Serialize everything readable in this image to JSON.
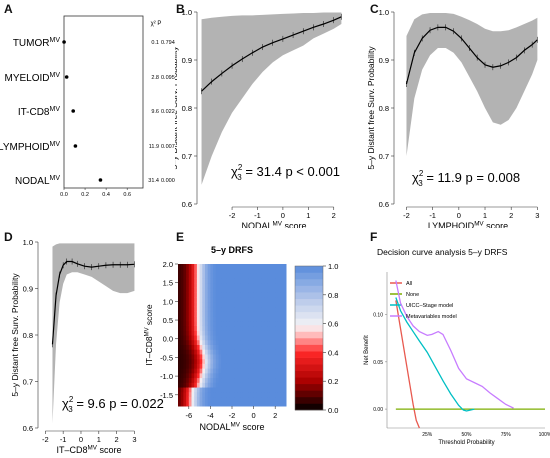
{
  "chart_data": [
    {
      "panel": "A",
      "type": "scatter",
      "xlabel": "Proportion of Overall χ²",
      "xlim": [
        0,
        0.75
      ],
      "xticks": [
        "0.0",
        "0.2",
        "0.4",
        "0.6"
      ],
      "stat_header": "χ²  P",
      "categories": [
        "TUMOR",
        "MYELOID",
        "IT-CD8",
        "LYMPHOID",
        "NODAL"
      ],
      "superscript": "MV",
      "values": [
        0.0008,
        0.0253,
        0.0874,
        0.1083,
        0.3461
      ],
      "chi2": [
        "0.1",
        "2.8",
        "9.6",
        "11.9",
        "31.4"
      ],
      "p": [
        "0.7944",
        "0.0957",
        "0.0221",
        "0.0077",
        "0.0000"
      ]
    },
    {
      "panel": "B",
      "type": "line",
      "ylabel": "5–y Distant free Surv. Probability",
      "xlabel": "NODAL",
      "xlabel_sup": "MV",
      "xlabel_suffix": "score",
      "xlim": [
        -3.3,
        2.6
      ],
      "ylim": [
        0.6,
        1.0
      ],
      "yticks": [
        "0.6",
        "0.7",
        "0.8",
        "0.9",
        "1.0"
      ],
      "xticks": [
        "-2",
        "-1",
        "0",
        "1",
        "2"
      ],
      "x": [
        -3.2,
        -2.8,
        -2.4,
        -2.0,
        -1.6,
        -1.2,
        -0.8,
        -0.4,
        0,
        0.4,
        0.8,
        1.2,
        1.6,
        2.0,
        2.3
      ],
      "y": [
        0.835,
        0.855,
        0.872,
        0.888,
        0.902,
        0.915,
        0.927,
        0.936,
        0.944,
        0.952,
        0.96,
        0.968,
        0.975,
        0.983,
        0.99
      ],
      "lower": [
        0.64,
        0.7,
        0.75,
        0.79,
        0.82,
        0.85,
        0.875,
        0.895,
        0.91,
        0.92,
        0.93,
        0.945,
        0.955,
        0.965,
        0.975
      ],
      "upper": [
        0.985,
        0.988,
        0.99,
        0.992,
        0.993,
        0.993,
        0.994,
        0.995,
        0.996,
        0.997,
        0.998,
        0.998,
        0.999,
        0.999,
        0.999
      ],
      "stat_text": "= 31.4  p < 0.001"
    },
    {
      "panel": "C",
      "type": "line",
      "ylabel": "5–y Distant free Surv. Probability",
      "xlabel": "LYMPHOID",
      "xlabel_sup": "MV",
      "xlabel_suffix": "score",
      "xlim": [
        -2.4,
        3.1
      ],
      "ylim": [
        0.6,
        1.0
      ],
      "yticks": [
        "0.6",
        "0.7",
        "0.8",
        "0.9",
        "1.0"
      ],
      "xticks": [
        "-2",
        "-1",
        "0",
        "1",
        "2",
        "3"
      ],
      "x": [
        -2.0,
        -1.7,
        -1.4,
        -1.1,
        -0.8,
        -0.5,
        -0.2,
        0.1,
        0.4,
        0.7,
        1.0,
        1.3,
        1.6,
        1.9,
        2.2,
        2.5,
        2.8,
        3.0
      ],
      "y": [
        0.85,
        0.915,
        0.945,
        0.962,
        0.968,
        0.968,
        0.96,
        0.945,
        0.925,
        0.905,
        0.89,
        0.885,
        0.888,
        0.895,
        0.905,
        0.92,
        0.932,
        0.942
      ],
      "lower": [
        0.7,
        0.82,
        0.88,
        0.91,
        0.925,
        0.925,
        0.915,
        0.895,
        0.865,
        0.835,
        0.8,
        0.77,
        0.765,
        0.775,
        0.8,
        0.835,
        0.87,
        0.9
      ],
      "upper": [
        0.95,
        0.985,
        0.995,
        0.998,
        0.998,
        0.998,
        0.996,
        0.99,
        0.983,
        0.975,
        0.965,
        0.96,
        0.96,
        0.962,
        0.968,
        0.975,
        0.982,
        0.988
      ],
      "stat_text": "= 11.9  p = 0.008"
    },
    {
      "panel": "D",
      "type": "line",
      "ylabel": "5–y Distant free Surv. Probability",
      "xlabel": "IT–CD8",
      "xlabel_sup": "MV",
      "xlabel_suffix": "score",
      "xlim": [
        -2.3,
        3.2
      ],
      "ylim": [
        0.6,
        1.0
      ],
      "yticks": [
        "0.6",
        "0.7",
        "0.8",
        "0.9",
        "1.0"
      ],
      "xticks": [
        "-2",
        "-1",
        "0",
        "1",
        "2",
        "3"
      ],
      "x": [
        -1.6,
        -1.4,
        -1.2,
        -1.0,
        -0.8,
        -0.5,
        -0.2,
        0.2,
        0.6,
        1.0,
        1.4,
        1.8,
        2.2,
        2.6,
        3.0
      ],
      "y": [
        0.78,
        0.885,
        0.93,
        0.95,
        0.958,
        0.958,
        0.953,
        0.948,
        0.946,
        0.948,
        0.95,
        0.951,
        0.951,
        0.951,
        0.952
      ],
      "lower": [
        0.61,
        0.78,
        0.87,
        0.91,
        0.93,
        0.935,
        0.935,
        0.93,
        0.925,
        0.915,
        0.905,
        0.895,
        0.89,
        0.89,
        0.895
      ],
      "upper": [
        0.99,
        0.995,
        0.997,
        0.997,
        0.997,
        0.997,
        0.997,
        0.997,
        0.997,
        0.997,
        0.997,
        0.997,
        0.997,
        0.997,
        0.997
      ],
      "stat_text": "= 9.6  p = 0.022"
    },
    {
      "panel": "E",
      "type": "heatmap",
      "title": "5–y DRFS",
      "xlabel": "NODAL",
      "xlabel_sup": "MV",
      "xlabel_suffix": "score",
      "ylabel": "IT–CD8",
      "ylabel_sup": "MV",
      "ylabel_suffix": "score",
      "xlim": [
        -7,
        3
      ],
      "ylim": [
        -1.8,
        2.0
      ],
      "xticks": [
        "-6",
        "-4",
        "-2",
        "0",
        "2"
      ],
      "yticks": [
        "-1.5",
        "-1.0",
        "-0.5",
        "0.0",
        "0.5",
        "1.0",
        "1.5",
        "2.0"
      ],
      "colorbar_ticks": [
        "0.0",
        "0.2",
        "0.4",
        "0.6",
        "0.8",
        "1.0"
      ]
    },
    {
      "panel": "F",
      "type": "line",
      "title": "Decision curve analysis 5–y DRFS",
      "ylabel": "Net Benefit",
      "xlabel": "Threshold Probability",
      "xticks": [
        "25%",
        "50%",
        "75%",
        "100%"
      ],
      "xlim": [
        0,
        100
      ],
      "ylim": [
        -0.02,
        0.145
      ],
      "series": [
        {
          "name": "All",
          "color": "#e8594f",
          "x": [
            5,
            8,
            10,
            12,
            14,
            16,
            18,
            20
          ],
          "y": [
            0.115,
            0.085,
            0.065,
            0.045,
            0.025,
            0.005,
            -0.012,
            -0.03
          ]
        },
        {
          "name": "None",
          "color": "#7cae00",
          "x": [
            5,
            100
          ],
          "y": [
            0,
            0
          ]
        },
        {
          "name": "UICC–Stage model",
          "color": "#00bfc4",
          "x": [
            5,
            8,
            12,
            16,
            20,
            25,
            30,
            35,
            40,
            45,
            48,
            50,
            55
          ],
          "y": [
            0.118,
            0.104,
            0.092,
            0.082,
            0.072,
            0.06,
            0.045,
            0.03,
            0.016,
            0.004,
            -0.001,
            -0.002,
            0
          ]
        },
        {
          "name": "Metavariables model",
          "color": "#c77cff",
          "x": [
            5,
            8,
            12,
            16,
            20,
            25,
            28,
            32,
            35,
            40,
            45,
            50,
            55,
            60,
            65,
            70,
            75,
            80
          ],
          "y": [
            0.136,
            0.112,
            0.098,
            0.088,
            0.082,
            0.078,
            0.079,
            0.082,
            0.079,
            0.062,
            0.043,
            0.032,
            0.028,
            0.024,
            0.017,
            0.011,
            0.005,
            0.001
          ]
        }
      ]
    }
  ]
}
